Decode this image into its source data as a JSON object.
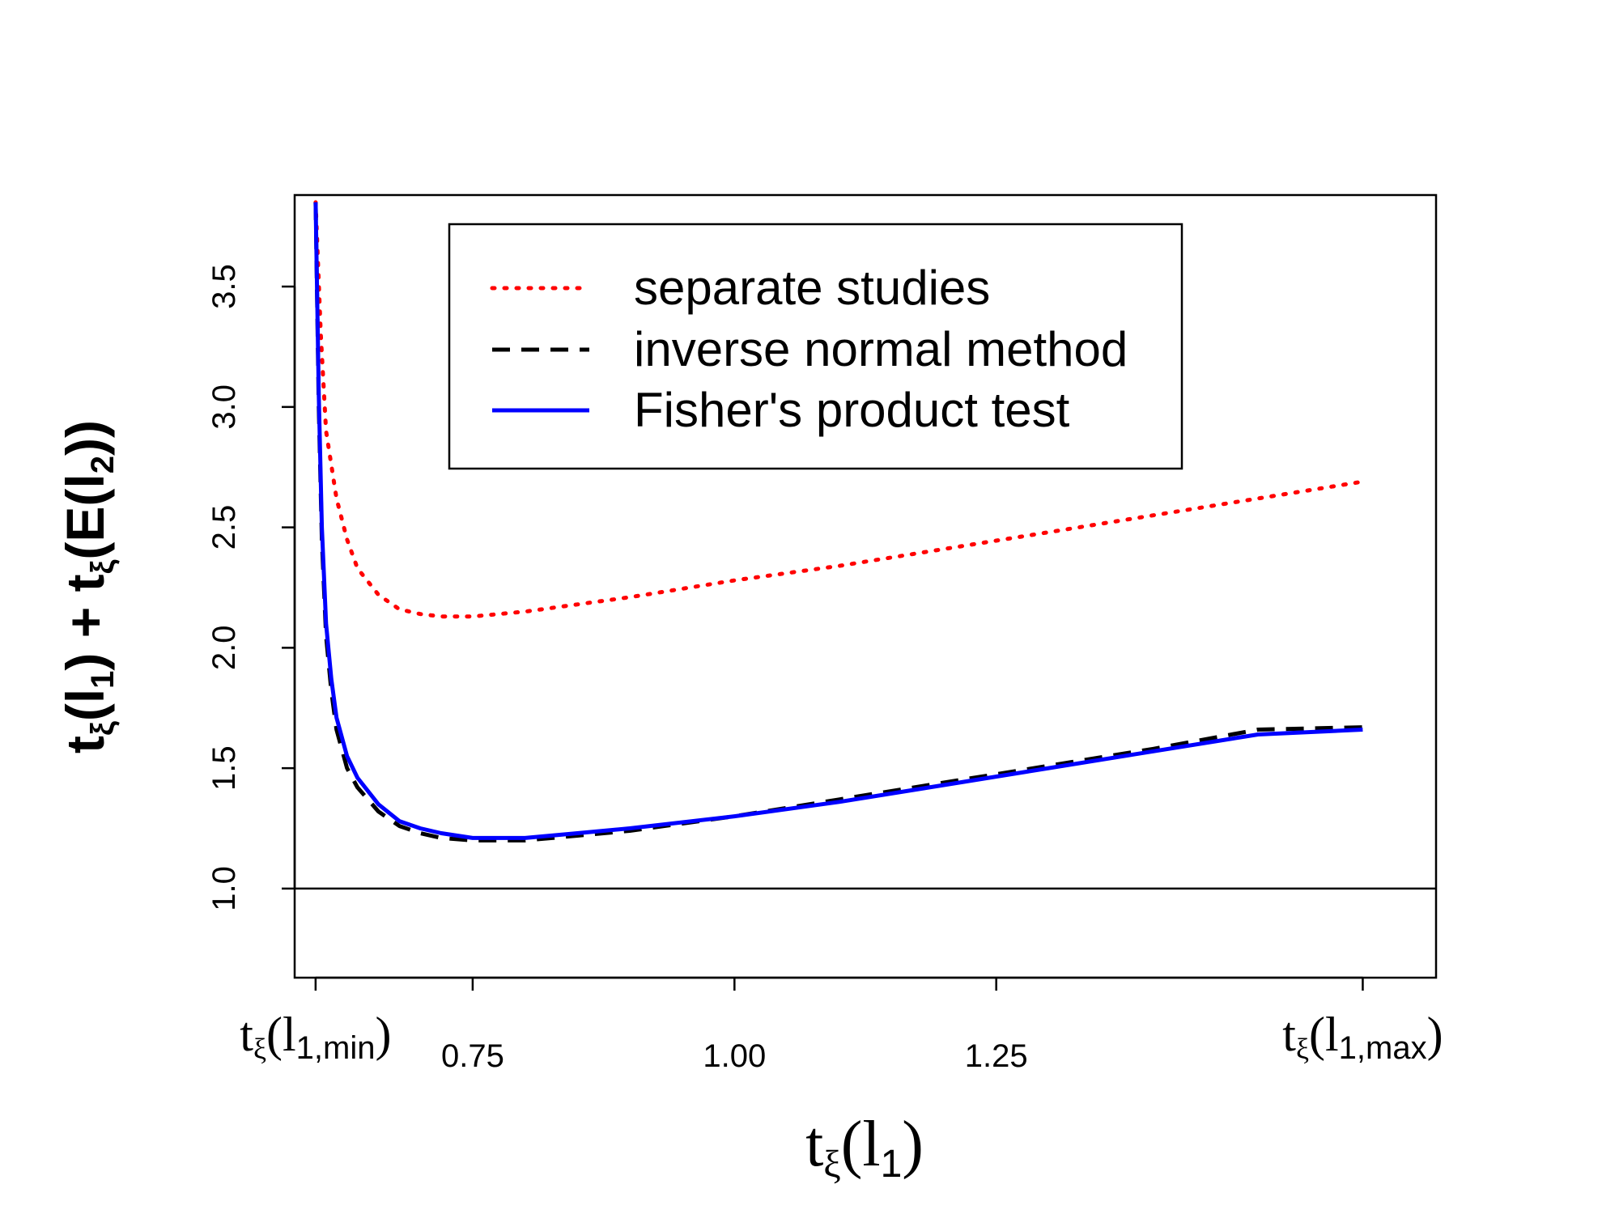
{
  "chart_data": {
    "type": "line",
    "title": "",
    "xlabel": "tξ(l1)",
    "ylabel": "tξ(l1) + tξ(E(l2))",
    "xlim": [
      0.58,
      1.67
    ],
    "ylim": [
      0.63,
      3.88
    ],
    "x_tick_labels": [
      {
        "value": 0.6,
        "label": "tξ(l1,min)"
      },
      {
        "value": 0.75,
        "label": "0.75"
      },
      {
        "value": 1.0,
        "label": "1.00"
      },
      {
        "value": 1.25,
        "label": "1.25"
      },
      {
        "value": 1.6,
        "label": "tξ(l1,max)"
      }
    ],
    "y_tick_labels": [
      "1.0",
      "1.5",
      "2.0",
      "2.5",
      "3.0",
      "3.5"
    ],
    "y_ticks": [
      1.0,
      1.5,
      2.0,
      2.5,
      3.0,
      3.5
    ],
    "reference_line": {
      "y": 1.0,
      "color": "#000000"
    },
    "legend_position": "top",
    "series": [
      {
        "name": "separate studies",
        "color": "#ff0000",
        "style": "dotted",
        "x": [
          0.6,
          0.605,
          0.61,
          0.62,
          0.63,
          0.64,
          0.66,
          0.68,
          0.7,
          0.72,
          0.75,
          0.8,
          0.85,
          0.9,
          1.0,
          1.1,
          1.2,
          1.3,
          1.4,
          1.5,
          1.6
        ],
        "y": [
          3.85,
          3.3,
          2.9,
          2.62,
          2.45,
          2.33,
          2.22,
          2.16,
          2.14,
          2.13,
          2.13,
          2.15,
          2.18,
          2.21,
          2.28,
          2.34,
          2.41,
          2.48,
          2.55,
          2.62,
          2.69
        ]
      },
      {
        "name": "inverse normal method",
        "color": "#000000",
        "style": "dashed",
        "x": [
          0.6,
          0.603,
          0.606,
          0.61,
          0.615,
          0.62,
          0.63,
          0.64,
          0.66,
          0.68,
          0.7,
          0.72,
          0.75,
          0.8,
          0.85,
          0.9,
          1.0,
          1.1,
          1.2,
          1.3,
          1.4,
          1.5,
          1.6
        ],
        "y": [
          3.85,
          3.0,
          2.45,
          2.05,
          1.82,
          1.66,
          1.5,
          1.42,
          1.32,
          1.26,
          1.23,
          1.21,
          1.2,
          1.2,
          1.22,
          1.24,
          1.3,
          1.37,
          1.44,
          1.51,
          1.58,
          1.66,
          1.67
        ]
      },
      {
        "name": "Fisher's product test",
        "color": "#0000ff",
        "style": "solid",
        "x": [
          0.6,
          0.603,
          0.606,
          0.61,
          0.615,
          0.62,
          0.63,
          0.64,
          0.66,
          0.68,
          0.7,
          0.72,
          0.75,
          0.8,
          0.85,
          0.9,
          1.0,
          1.1,
          1.2,
          1.3,
          1.4,
          1.5,
          1.6
        ],
        "y": [
          3.85,
          3.05,
          2.5,
          2.1,
          1.87,
          1.71,
          1.55,
          1.46,
          1.35,
          1.28,
          1.25,
          1.23,
          1.21,
          1.21,
          1.23,
          1.25,
          1.3,
          1.36,
          1.43,
          1.5,
          1.57,
          1.64,
          1.66
        ]
      }
    ]
  }
}
